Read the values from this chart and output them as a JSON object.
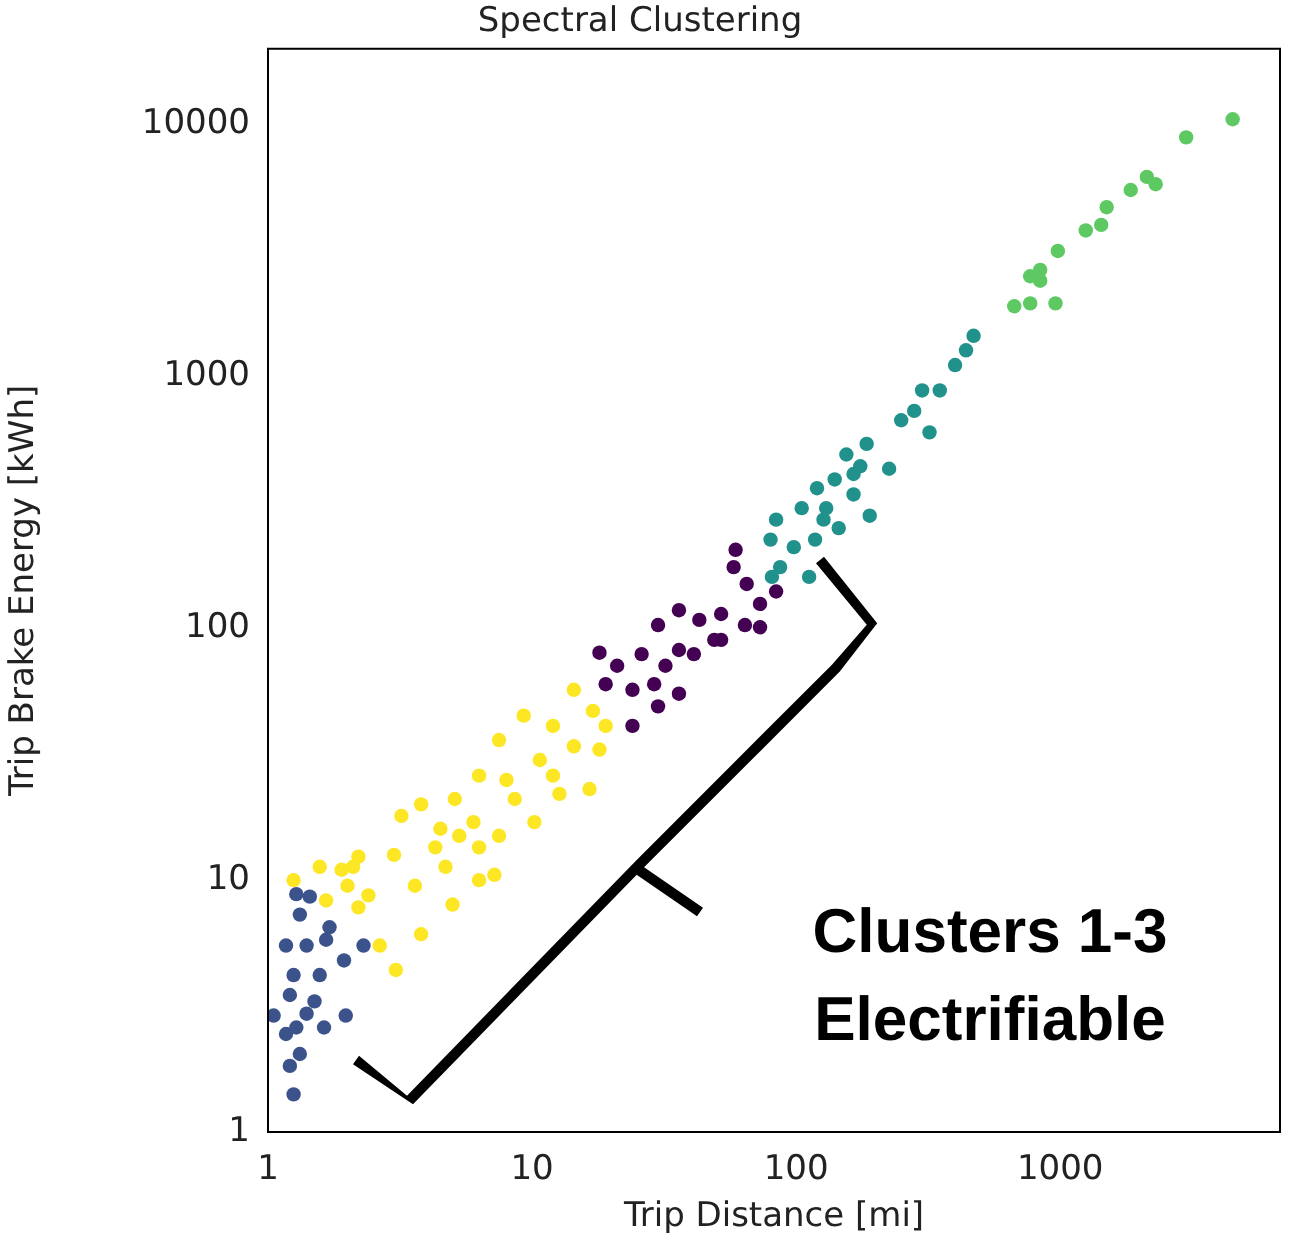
{
  "chart_data": {
    "type": "scatter",
    "title": "Spectral Clustering",
    "xlabel": "Trip Distance [mi]",
    "ylabel": "Trip Brake Energy [kWh]",
    "log": "xy",
    "xlim": [
      1,
      6800
    ],
    "ylim": [
      1,
      20000
    ],
    "xticks": [
      1,
      10,
      100,
      1000
    ],
    "yticks": [
      1,
      10,
      100,
      1000,
      10000
    ],
    "grid": false,
    "legend": false,
    "marker": "circle",
    "annotations": [
      "Clusters 1-3 Electrifiable"
    ],
    "series": [
      {
        "color": "#3b528b",
        "x": [
          1.25,
          1.21,
          1.32,
          1.05,
          1.28,
          1.21,
          1.5,
          1.57,
          1.25,
          1.66,
          1.4,
          1.71,
          1.32,
          1.28,
          1.44,
          1.97,
          1.94,
          2.3,
          1.17,
          1.63,
          1.4,
          1.17
        ],
        "values": [
          1.41,
          1.83,
          2.04,
          2.9,
          2.6,
          3.5,
          3.3,
          4.2,
          4.2,
          5.8,
          5.5,
          6.5,
          7.3,
          8.8,
          8.6,
          2.9,
          4.8,
          5.5,
          5.5,
          2.6,
          2.95,
          2.45
        ]
      },
      {
        "color": "#fde725",
        "x": [
          14.4,
          17,
          9.3,
          7.5,
          12,
          19,
          16.5,
          18,
          10.7,
          6.3,
          5.1,
          3.8,
          3.2,
          8.6,
          12.7,
          6,
          7.5,
          6.3,
          4.3,
          3,
          2.2,
          2.1,
          1.57,
          1.25,
          2,
          2.4,
          3.6,
          5,
          3.8,
          3.05,
          2.65,
          4.7,
          6.3,
          5.3,
          10.2,
          8,
          14.4,
          12,
          7.2,
          4.5,
          1.9,
          2.2,
          1.66
        ],
        "values": [
          57,
          47,
          45,
          36,
          41,
          41,
          23,
          33,
          30,
          26,
          21,
          20,
          18,
          21,
          22,
          17,
          15,
          10,
          13.5,
          12.6,
          12.4,
          11.3,
          11.3,
          10,
          9.5,
          8.7,
          9.5,
          8,
          6.1,
          4.4,
          5.5,
          11.3,
          13.5,
          15,
          17,
          25,
          34,
          26,
          10.5,
          16,
          11,
          7.8,
          8.3
        ]
      },
      {
        "color": "#440154",
        "x": [
          59,
          58,
          65,
          84,
          73,
          52,
          64,
          36,
          43,
          30,
          73,
          49,
          36,
          26,
          32,
          18,
          21,
          29,
          24,
          19,
          52,
          41,
          36,
          24,
          30
        ],
        "values": [
          205,
          175,
          150,
          140,
          125,
          114,
          103,
          118,
          108,
          103,
          101,
          90,
          82,
          79,
          71,
          80,
          71,
          60,
          57,
          60,
          90,
          79,
          55,
          41,
          49
        ]
      },
      {
        "color": "#21918c",
        "x": [
          470,
          440,
          400,
          350,
          300,
          250,
          280,
          320,
          185,
          225,
          155,
          165,
          140,
          190,
          120,
          130,
          105,
          145,
          118,
          84,
          80,
          98,
          87,
          112,
          81,
          165,
          127,
          175
        ],
        "values": [
          1450,
          1270,
          1110,
          880,
          880,
          670,
          730,
          600,
          540,
          430,
          490,
          410,
          390,
          280,
          360,
          300,
          300,
          250,
          225,
          270,
          225,
          210,
          175,
          160,
          160,
          340,
          270,
          440
        ]
      },
      {
        "color": "#5ec962",
        "x": [
          4500,
          3000,
          2130,
          2300,
          1850,
          1500,
          1430,
          1250,
          980,
          840,
          770,
          960,
          770,
          670,
          840
        ],
        "values": [
          10500,
          8900,
          6200,
          5800,
          5500,
          4700,
          4000,
          3800,
          3150,
          2650,
          2500,
          1950,
          1950,
          1900,
          2400
        ]
      }
    ]
  }
}
